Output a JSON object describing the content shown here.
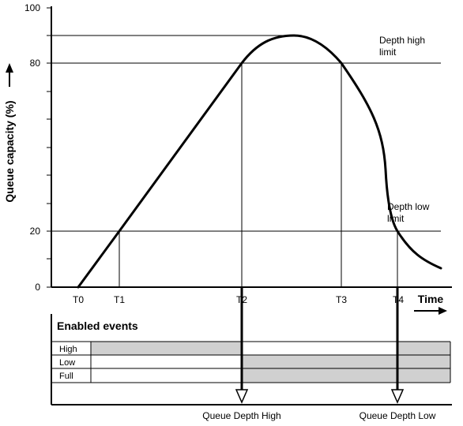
{
  "chart_data": {
    "type": "line",
    "ylabel": "Queue capacity (%)",
    "xlabel": "Time",
    "ylim": [
      0,
      100
    ],
    "y_ticks": [
      "0",
      "20",
      "80",
      "100"
    ],
    "x_markers": [
      "T0",
      "T1",
      "T2",
      "T3",
      "T4"
    ],
    "series": [
      {
        "points": [
          {
            "x": "T0",
            "y": 0
          },
          {
            "x": "T1",
            "y": 20
          },
          {
            "x": "T2",
            "y": 80
          },
          {
            "x": "peak",
            "y": 90
          },
          {
            "x": "T3",
            "y": 80
          },
          {
            "x": "T4",
            "y": 20
          }
        ]
      }
    ],
    "thresholds": [
      {
        "label_line1": "Depth high",
        "label_line2": "limit",
        "value": 80
      },
      {
        "label_line1": "Depth low",
        "label_line2": "limit",
        "value": 20
      }
    ]
  },
  "events_panel": {
    "title": "Enabled events",
    "rows": [
      {
        "label": "High",
        "enabled": "T0 to T2, after T4"
      },
      {
        "label": "Low",
        "enabled": "T2 onward"
      },
      {
        "label": "Full",
        "enabled": "T2 onward"
      }
    ],
    "fill_color": "#d0d0d0",
    "events": [
      {
        "label": "Queue Depth High",
        "at": "T2"
      },
      {
        "label": "Queue Depth Low",
        "at": "T4"
      }
    ]
  }
}
